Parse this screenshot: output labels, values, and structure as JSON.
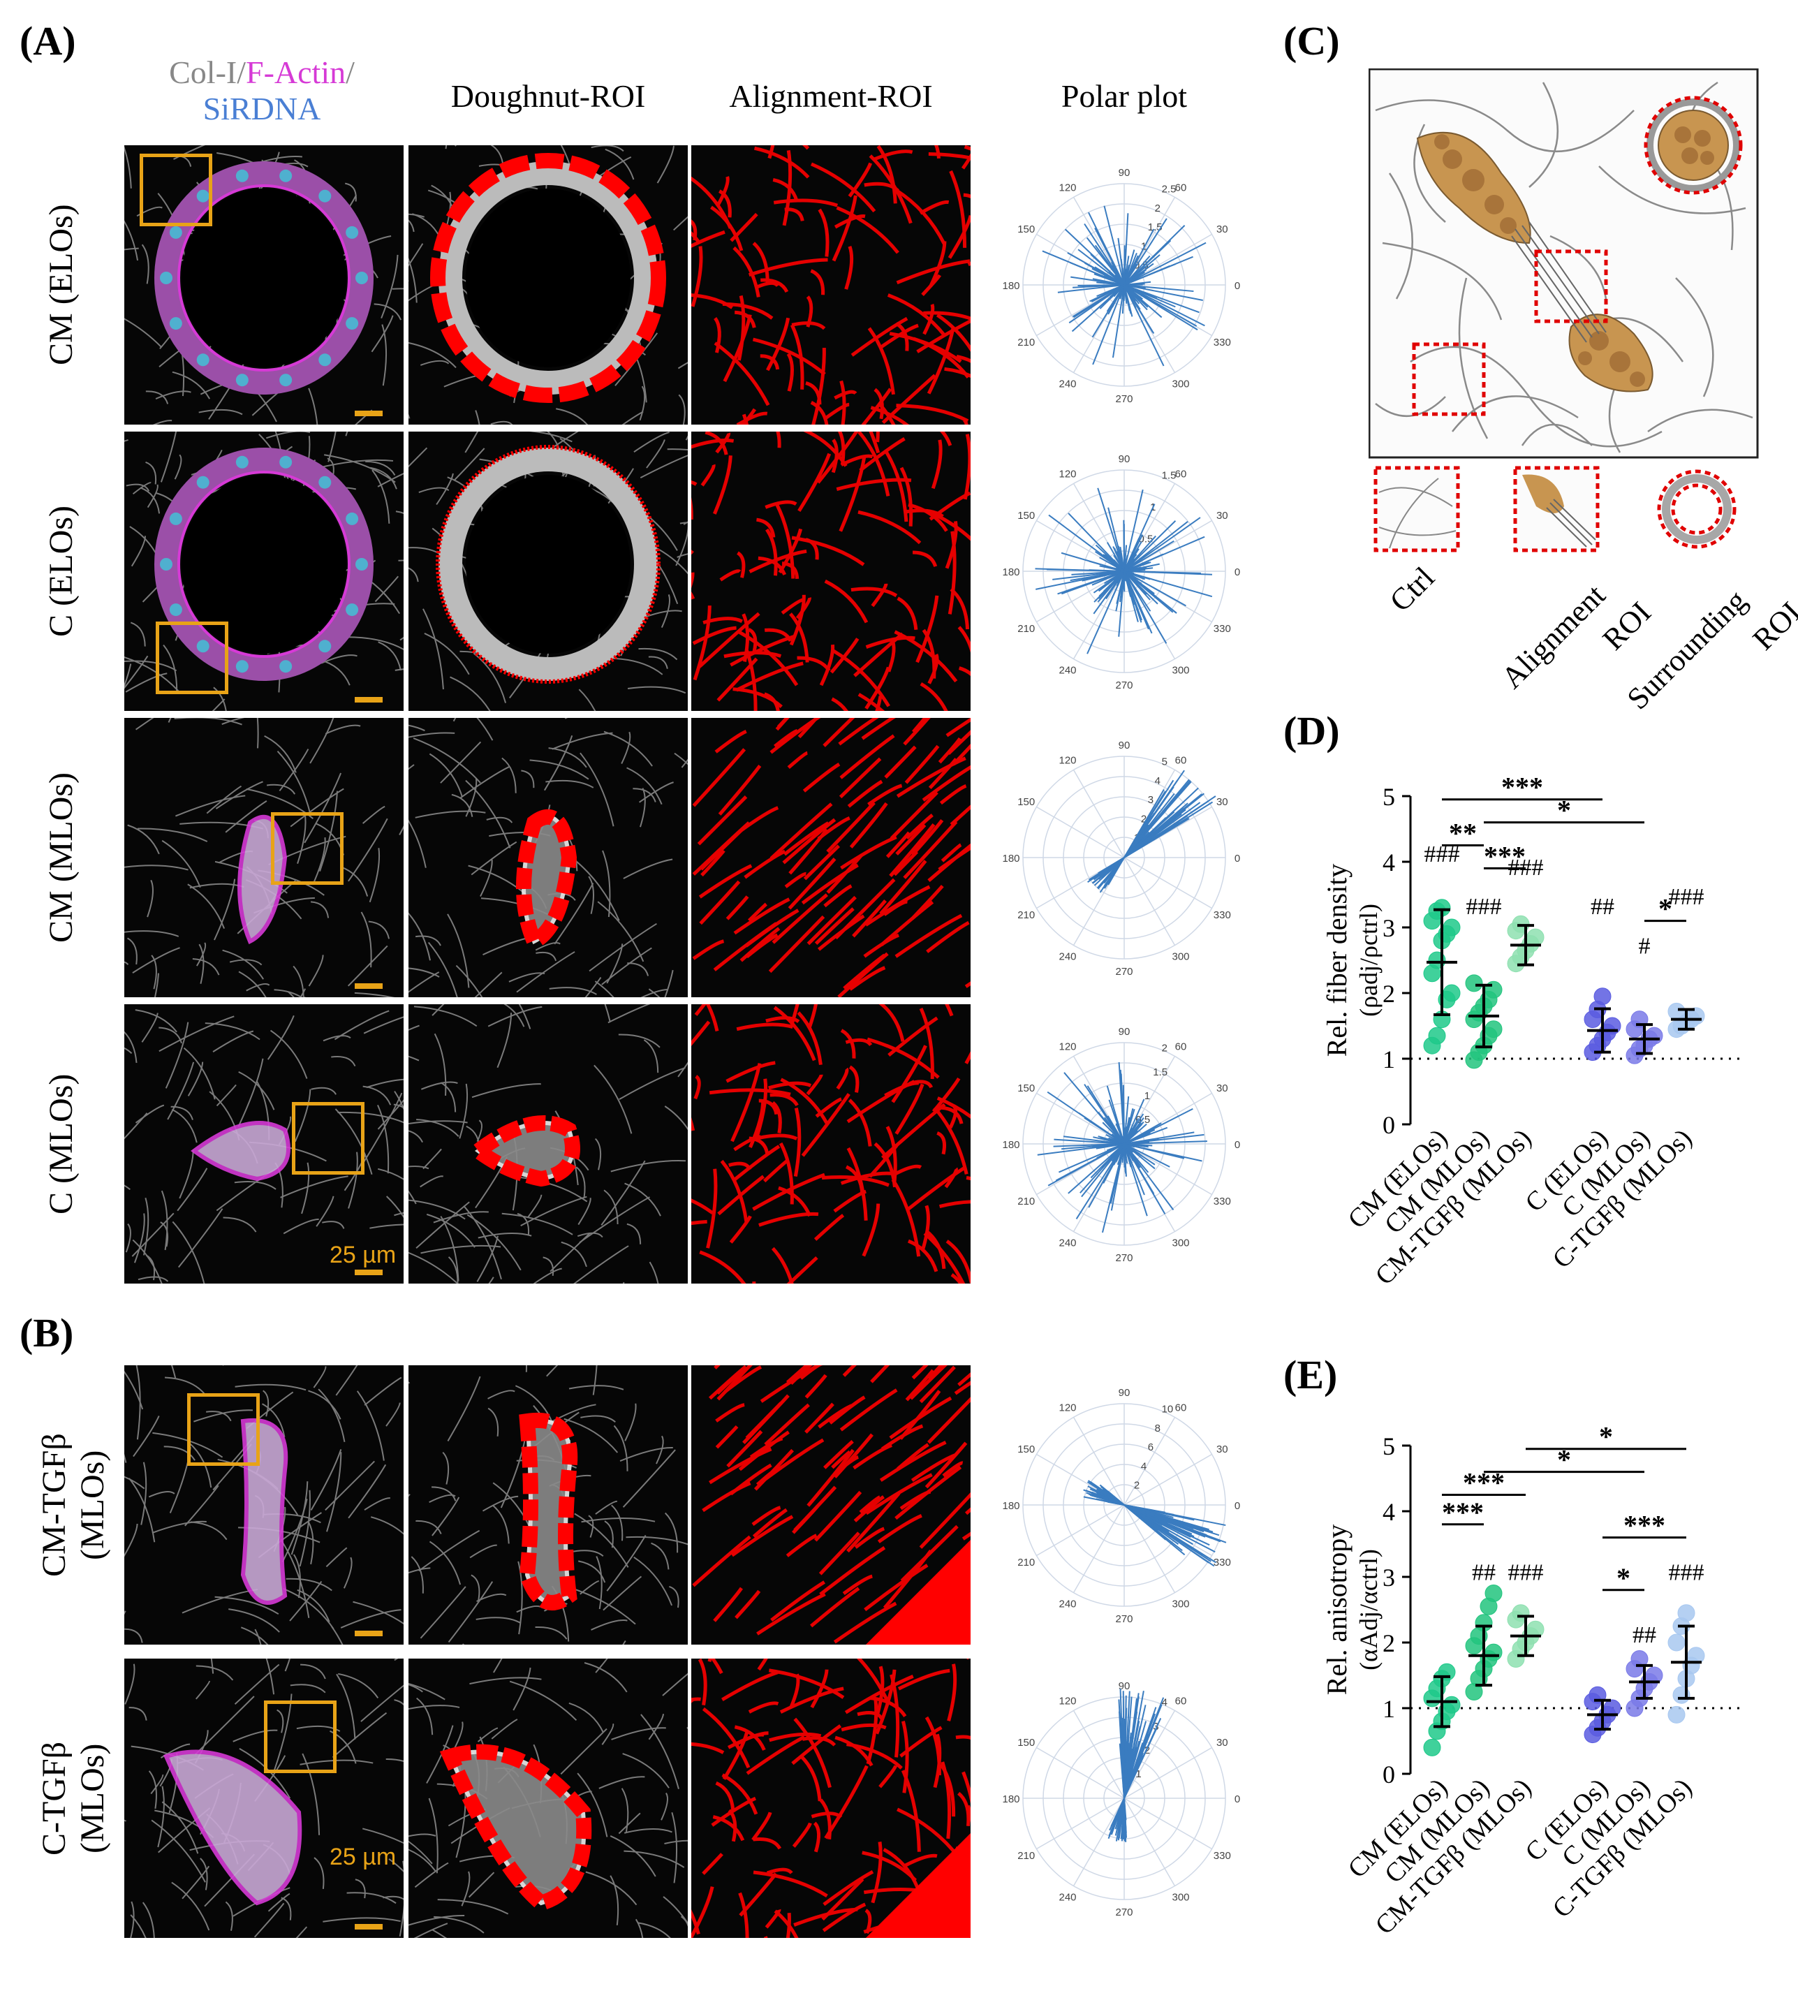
{
  "panels": {
    "A": "(A)",
    "B": "(B)",
    "C": "(C)",
    "D": "(D)",
    "E": "(E)"
  },
  "column_headers": {
    "stain_line1_col1": "Col-I/",
    "stain_line1_factin": "F-Actin",
    "stain_line1_slash": "/",
    "stain_line2": "SiRDNA",
    "doughnut": "Doughnut-ROI",
    "alignment": "Alignment-ROI",
    "polar": "Polar plot"
  },
  "row_labels_A": [
    "CM (ELOs)",
    "C (ELOs)",
    "CM (MLOs)",
    "C (MLOs)"
  ],
  "row_labels_B": [
    [
      "CM-TGFβ",
      "(MLOs)"
    ],
    [
      "C-TGFβ",
      "(MLOs)"
    ]
  ],
  "scale_bar_label": "25 µm",
  "colors": {
    "gold": "#e8a317",
    "red": "#ff0000",
    "magenta": "#d63ad6",
    "blue": "#4a7fd4",
    "polar_line": "#3a7cc0",
    "polar_grid": "#cfd8e6"
  },
  "polar_plots": [
    {
      "angles": [
        "90",
        "60",
        "30",
        "0",
        "330",
        "300",
        "270",
        "240",
        "210",
        "180",
        "150",
        "120"
      ],
      "radial_ticks": [
        "0.5",
        "1",
        "1.5",
        "2",
        "2.5"
      ]
    },
    {
      "angles": [
        "90",
        "60",
        "30",
        "0",
        "330",
        "300",
        "270",
        "240",
        "210",
        "180",
        "150",
        "120"
      ],
      "radial_ticks": [
        "0.5",
        "1",
        "1.5"
      ]
    },
    {
      "angles": [
        "90",
        "60",
        "30",
        "0",
        "330",
        "300",
        "270",
        "240",
        "210",
        "180",
        "150",
        "120"
      ],
      "radial_ticks": [
        "1",
        "2",
        "3",
        "4",
        "5"
      ]
    },
    {
      "angles": [
        "90",
        "60",
        "30",
        "0",
        "330",
        "300",
        "270",
        "240",
        "210",
        "180",
        "150",
        "120"
      ],
      "radial_ticks": [
        "0.5",
        "1",
        "1.5",
        "2"
      ]
    },
    {
      "angles": [
        "90",
        "60",
        "30",
        "0",
        "330",
        "300",
        "270",
        "240",
        "210",
        "180",
        "150",
        "120"
      ],
      "radial_ticks": [
        "2",
        "4",
        "6",
        "8",
        "10"
      ]
    },
    {
      "angles": [
        "90",
        "60",
        "30",
        "0",
        "330",
        "300",
        "270",
        "240",
        "210",
        "180",
        "150",
        "120"
      ],
      "radial_ticks": [
        "1",
        "2",
        "3",
        "4"
      ]
    }
  ],
  "schematic": {
    "labels": [
      "Ctrl",
      "Alignment ROI",
      "Surrounding ROI"
    ],
    "label_lines": [
      [
        "Ctrl"
      ],
      [
        "Alignment",
        "ROI"
      ],
      [
        "Surrounding",
        "ROI"
      ]
    ]
  },
  "chart_data": [
    {
      "type": "scatter",
      "panel": "D",
      "ylabel": "Rel. fiber density",
      "ylabel_sub": "(ρadj/ρctrl)",
      "ylim": [
        0,
        5
      ],
      "yticks": [
        "0",
        "1",
        "2",
        "3",
        "4",
        "5"
      ],
      "reference_line": 1,
      "categories": [
        "CM (ELOs)",
        "CM (MLOs)",
        "CM-TGFβ (MLOs)",
        "C (ELOs)",
        "C (MLOs)",
        "C-TGFβ (MLOs)"
      ],
      "means": [
        2.47,
        1.65,
        2.73,
        1.43,
        1.3,
        1.6
      ],
      "sd": [
        0.8,
        0.47,
        0.3,
        0.33,
        0.22,
        0.15
      ],
      "points": [
        [
          1.2,
          1.35,
          1.6,
          1.9,
          2.0,
          2.3,
          2.5,
          2.8,
          2.9,
          3.0,
          3.1,
          3.25,
          3.3
        ],
        [
          0.98,
          1.1,
          1.2,
          1.35,
          1.45,
          1.6,
          1.7,
          1.8,
          1.9,
          2.05,
          2.15
        ],
        [
          2.45,
          2.55,
          2.65,
          2.75,
          2.85,
          2.95,
          3.05
        ],
        [
          1.1,
          1.2,
          1.3,
          1.4,
          1.5,
          1.6,
          1.75,
          1.95
        ],
        [
          1.05,
          1.15,
          1.2,
          1.3,
          1.35,
          1.45,
          1.6
        ],
        [
          1.45,
          1.5,
          1.55,
          1.6,
          1.65,
          1.72
        ]
      ],
      "hash_marks": [
        "###",
        "###",
        "###",
        "##",
        "#",
        "###"
      ],
      "hash_y": [
        4.0,
        3.2,
        3.8,
        3.2,
        2.6,
        3.35
      ],
      "significance": [
        {
          "from": 0,
          "to": 3,
          "y": 4.95,
          "label": "***"
        },
        {
          "from": 1,
          "to": 4,
          "y": 4.6,
          "label": "*"
        },
        {
          "from": 0,
          "to": 1,
          "y": 4.25,
          "label": "**"
        },
        {
          "from": 1,
          "to": 2,
          "y": 3.9,
          "label": "***"
        },
        {
          "from": 4,
          "to": 5,
          "y": 3.1,
          "label": "*"
        }
      ]
    },
    {
      "type": "scatter",
      "panel": "E",
      "ylabel": "Rel. anisotropy",
      "ylabel_sub": "(αAdj/αctrl)",
      "ylim": [
        0,
        5
      ],
      "yticks": [
        "0",
        "1",
        "2",
        "3",
        "4",
        "5"
      ],
      "reference_line": 1,
      "categories": [
        "CM (ELOs)",
        "CM (MLOs)",
        "CM-TGFβ (MLOs)",
        "C (ELOs)",
        "C (MLOs)",
        "C-TGFβ (MLOs)"
      ],
      "means": [
        1.1,
        1.8,
        2.1,
        0.9,
        1.4,
        1.7
      ],
      "sd": [
        0.38,
        0.45,
        0.3,
        0.22,
        0.25,
        0.55
      ],
      "points": [
        [
          0.4,
          0.65,
          0.8,
          0.95,
          1.05,
          1.15,
          1.3,
          1.45,
          1.55
        ],
        [
          1.25,
          1.45,
          1.6,
          1.75,
          1.85,
          1.95,
          2.1,
          2.3,
          2.55,
          2.75
        ],
        [
          1.75,
          1.9,
          2.0,
          2.1,
          2.2,
          2.35,
          2.45
        ],
        [
          0.6,
          0.7,
          0.8,
          0.9,
          1.0,
          1.1,
          1.2
        ],
        [
          1.0,
          1.15,
          1.3,
          1.4,
          1.5,
          1.6,
          1.75
        ],
        [
          0.9,
          1.2,
          1.45,
          1.65,
          1.8,
          2.0,
          2.25,
          2.45
        ]
      ],
      "hash_marks": [
        "",
        "##",
        "###",
        "",
        "##",
        "###"
      ],
      "hash_y": [
        0,
        2.95,
        2.95,
        0,
        2.0,
        2.95
      ],
      "significance": [
        {
          "from": 2,
          "to": 5,
          "y": 4.95,
          "label": "*"
        },
        {
          "from": 1,
          "to": 4,
          "y": 4.6,
          "label": "*"
        },
        {
          "from": 0,
          "to": 2,
          "y": 4.25,
          "label": "***"
        },
        {
          "from": 0,
          "to": 1,
          "y": 3.8,
          "label": "***"
        },
        {
          "from": 3,
          "to": 5,
          "y": 3.6,
          "label": "***"
        },
        {
          "from": 3,
          "to": 4,
          "y": 2.8,
          "label": "*"
        }
      ]
    }
  ]
}
